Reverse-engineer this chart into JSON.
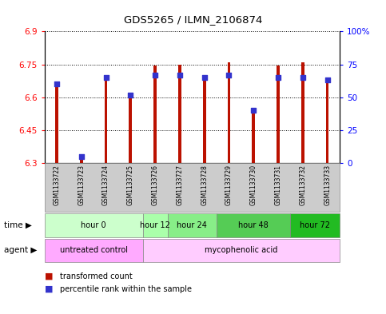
{
  "title": "GDS5265 / ILMN_2106874",
  "samples": [
    "GSM1133722",
    "GSM1133723",
    "GSM1133724",
    "GSM1133725",
    "GSM1133726",
    "GSM1133727",
    "GSM1133728",
    "GSM1133729",
    "GSM1133730",
    "GSM1133731",
    "GSM1133732",
    "GSM1133733"
  ],
  "transformed_count": [
    6.66,
    6.32,
    6.7,
    6.62,
    6.745,
    6.75,
    6.68,
    6.76,
    6.53,
    6.745,
    6.76,
    6.68
  ],
  "percentile_rank": [
    60,
    5,
    65,
    52,
    67,
    67,
    65,
    67,
    40,
    65,
    65,
    63
  ],
  "y_min": 6.3,
  "y_max": 6.9,
  "y_ticks": [
    6.3,
    6.45,
    6.6,
    6.75,
    6.9
  ],
  "right_y_ticks": [
    0,
    25,
    50,
    75,
    100
  ],
  "right_y_labels": [
    "0",
    "25",
    "50",
    "75",
    "100%"
  ],
  "bar_color": "#bb1100",
  "percentile_color": "#3333cc",
  "bar_width": 0.12,
  "time_groups": [
    {
      "label": "hour 0",
      "start": 0,
      "end": 3,
      "color": "#ccffcc"
    },
    {
      "label": "hour 12",
      "start": 4,
      "end": 4,
      "color": "#aaffaa"
    },
    {
      "label": "hour 24",
      "start": 5,
      "end": 6,
      "color": "#88ee88"
    },
    {
      "label": "hour 48",
      "start": 7,
      "end": 9,
      "color": "#55cc55"
    },
    {
      "label": "hour 72",
      "start": 10,
      "end": 11,
      "color": "#22bb22"
    }
  ],
  "agent_groups": [
    {
      "label": "untreated control",
      "start": 0,
      "end": 3,
      "color": "#ffaaff"
    },
    {
      "label": "mycophenolic acid",
      "start": 4,
      "end": 11,
      "color": "#ffccff"
    }
  ],
  "legend_bar_label": "transformed count",
  "legend_pct_label": "percentile rank within the sample",
  "sample_bg_color": "#cccccc",
  "background_color": "#ffffff"
}
